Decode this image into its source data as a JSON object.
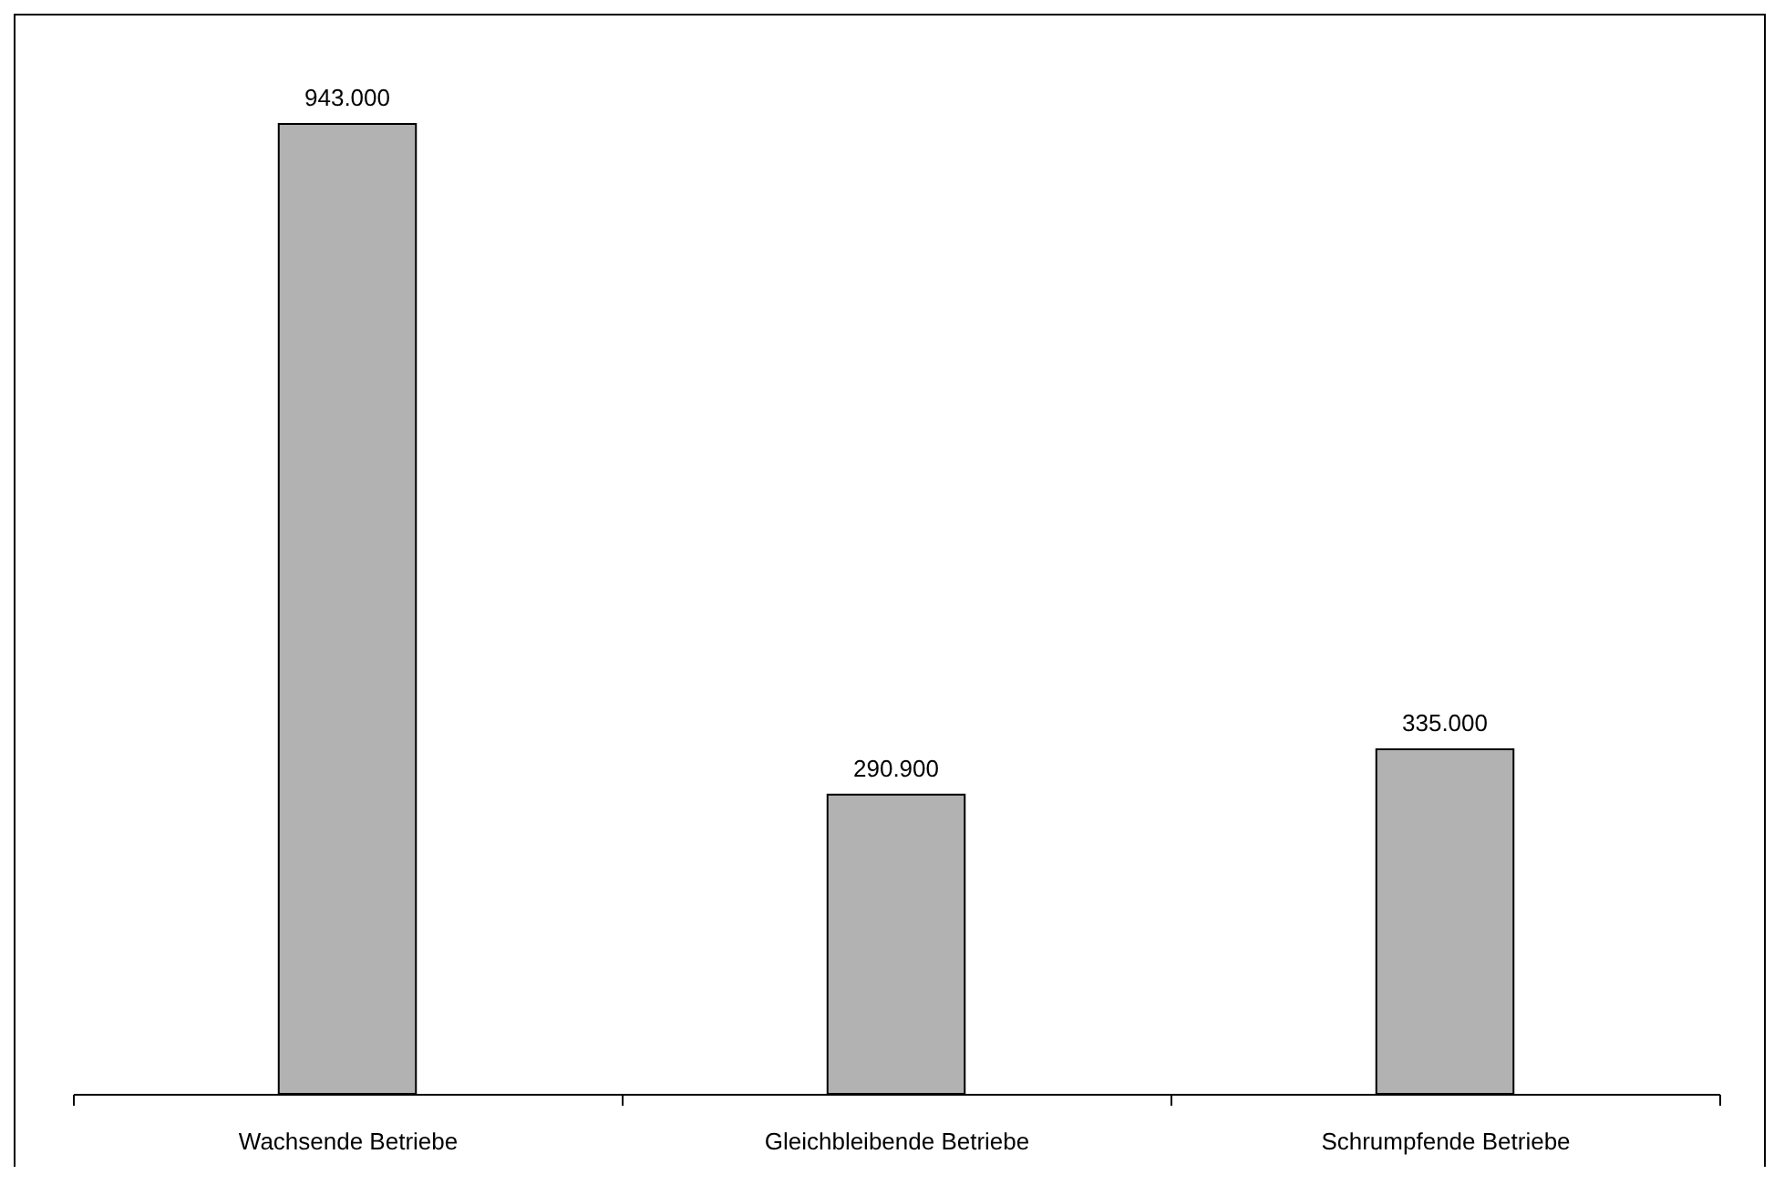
{
  "chart_data": {
    "type": "bar",
    "categories": [
      "Wachsende Betriebe",
      "Gleichbleibende Betriebe",
      "Schrumpfende Betriebe"
    ],
    "values": [
      943000,
      290900,
      335000
    ],
    "value_labels": [
      "943.000",
      "290.900",
      "335.000"
    ],
    "color": "#b2b2b2",
    "grid": false
  }
}
